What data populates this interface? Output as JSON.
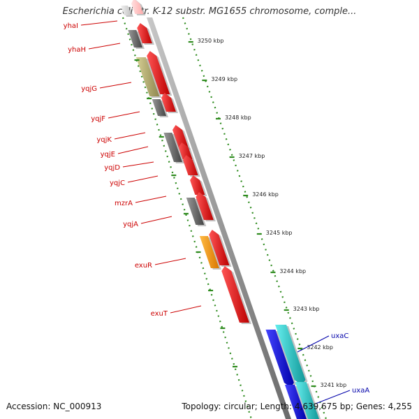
{
  "title": "Escherichia coli str. K-12 substr. MG1655 chromosome, comple...",
  "footer": {
    "accession": "Accession: NC_000913",
    "topology": "Topology: circular; Length: 4,639,675 bp; Genes: 4,255"
  },
  "colors": {
    "background": "#ffffff",
    "backbone": "#9a9a9a",
    "tick": "#2e8b1e",
    "gene_label_left": "#cc0000",
    "gene_label_right": "#0000aa",
    "red_gene": "#ee1111",
    "gray_gene": "#6e6e6e",
    "khaki_gene": "#b8b070",
    "orange_gene": "#ff9900",
    "blue_gene": "#1111dd",
    "cyan_gene": "#22cccc",
    "pink_gene": "#ffcccc",
    "lightgray_gene": "#dddddd"
  },
  "ticks": [
    {
      "label": "3250 kbp"
    },
    {
      "label": "3249 kbp"
    },
    {
      "label": "3248 kbp"
    },
    {
      "label": "3247 kbp"
    },
    {
      "label": "3246 kbp"
    },
    {
      "label": "3245 kbp"
    },
    {
      "label": "3244 kbp"
    },
    {
      "label": "3243 kbp"
    },
    {
      "label": "3242 kbp"
    },
    {
      "label": "3241 kbp"
    }
  ],
  "genes_left": [
    {
      "name": "yhaI"
    },
    {
      "name": "yhaH"
    },
    {
      "name": "yqjG"
    },
    {
      "name": "yqjF"
    },
    {
      "name": "yqjK"
    },
    {
      "name": "yqjE"
    },
    {
      "name": "yqjD"
    },
    {
      "name": "yqjC"
    },
    {
      "name": "mzrA"
    },
    {
      "name": "yqjA"
    },
    {
      "name": "exuR"
    },
    {
      "name": "exuT"
    }
  ],
  "genes_right": [
    {
      "name": "uxaC"
    },
    {
      "name": "uxaA"
    }
  ]
}
